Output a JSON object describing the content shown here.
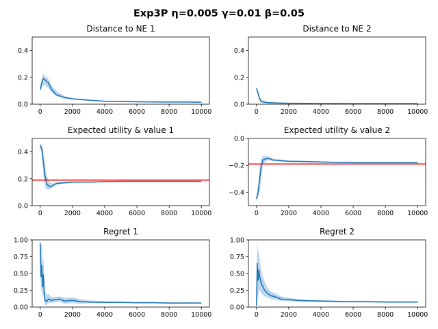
{
  "figure": {
    "suptitle": "Exp3P η=0.005 γ=0.01 β=0.05",
    "colors": {
      "line": "#1f77b4",
      "band": "#a8c8e8",
      "ref_line": "#ff0000",
      "axis": "#000000"
    }
  },
  "chart_data": [
    {
      "type": "line",
      "title": "Distance to NE 1",
      "xlim": [
        -500,
        10500
      ],
      "ylim": [
        0,
        0.5
      ],
      "xticks": [
        0,
        2000,
        4000,
        6000,
        8000,
        10000
      ],
      "xtick_labels": [
        "0",
        "2000",
        "4000",
        "6000",
        "8000",
        "10000"
      ],
      "yticks": [
        0.0,
        0.2,
        0.4
      ],
      "ytick_labels": [
        "0.0",
        "0.2",
        "0.4"
      ],
      "ref_line": null,
      "series": [
        {
          "name": "mean",
          "x": [
            0,
            100,
            200,
            300,
            500,
            700,
            1000,
            1500,
            2000,
            3000,
            4000,
            5000,
            6000,
            7000,
            8000,
            9000,
            10000
          ],
          "y": [
            0.11,
            0.16,
            0.19,
            0.18,
            0.16,
            0.11,
            0.07,
            0.05,
            0.04,
            0.03,
            0.022,
            0.02,
            0.018,
            0.017,
            0.016,
            0.016,
            0.015
          ],
          "lower": [
            0.1,
            0.12,
            0.14,
            0.14,
            0.12,
            0.09,
            0.06,
            0.04,
            0.035,
            0.025,
            0.02,
            0.018,
            0.016,
            0.015,
            0.014,
            0.014,
            0.013
          ],
          "upper": [
            0.12,
            0.2,
            0.23,
            0.21,
            0.19,
            0.14,
            0.1,
            0.06,
            0.045,
            0.035,
            0.025,
            0.022,
            0.02,
            0.019,
            0.018,
            0.018,
            0.017
          ]
        }
      ]
    },
    {
      "type": "line",
      "title": "Distance to NE 2",
      "xlim": [
        -500,
        10500
      ],
      "ylim": [
        0,
        0.5
      ],
      "xticks": [
        0,
        2000,
        4000,
        6000,
        8000,
        10000
      ],
      "xtick_labels": [
        "0",
        "2000",
        "4000",
        "6000",
        "8000",
        "10000"
      ],
      "yticks": [
        0.0,
        0.2,
        0.4
      ],
      "ytick_labels": [
        "0.0",
        "0.2",
        "0.4"
      ],
      "ref_line": null,
      "series": [
        {
          "name": "mean",
          "x": [
            0,
            100,
            200,
            300,
            500,
            700,
            1000,
            1500,
            2000,
            3000,
            4000,
            5000,
            6000,
            7000,
            8000,
            9000,
            10000
          ],
          "y": [
            0.12,
            0.08,
            0.04,
            0.02,
            0.015,
            0.012,
            0.01,
            0.008,
            0.007,
            0.006,
            0.005,
            0.005,
            0.004,
            0.004,
            0.004,
            0.004,
            0.004
          ],
          "lower": [
            0.11,
            0.06,
            0.02,
            0.01,
            0.008,
            0.007,
            0.006,
            0.005,
            0.004,
            0.004,
            0.003,
            0.003,
            0.003,
            0.003,
            0.003,
            0.003,
            0.003
          ],
          "upper": [
            0.13,
            0.1,
            0.06,
            0.03,
            0.022,
            0.018,
            0.014,
            0.011,
            0.01,
            0.008,
            0.007,
            0.007,
            0.006,
            0.006,
            0.005,
            0.005,
            0.005
          ]
        }
      ]
    },
    {
      "type": "line",
      "title": "Expected utility & value 1",
      "xlim": [
        -500,
        10500
      ],
      "ylim": [
        0,
        0.5
      ],
      "xticks": [
        0,
        2000,
        4000,
        6000,
        8000,
        10000
      ],
      "xtick_labels": [
        "0",
        "2000",
        "4000",
        "6000",
        "8000",
        "10000"
      ],
      "yticks": [
        0.0,
        0.2,
        0.4
      ],
      "ytick_labels": [
        "0.0",
        "0.2",
        "0.4"
      ],
      "ref_line": 0.19,
      "series": [
        {
          "name": "mean",
          "x": [
            0,
            100,
            200,
            300,
            400,
            600,
            800,
            1000,
            1500,
            2000,
            3000,
            4000,
            5000,
            6000,
            7000,
            8000,
            9000,
            10000
          ],
          "y": [
            0.45,
            0.42,
            0.32,
            0.22,
            0.16,
            0.14,
            0.15,
            0.165,
            0.17,
            0.175,
            0.175,
            0.178,
            0.18,
            0.18,
            0.18,
            0.18,
            0.18,
            0.18
          ],
          "lower": [
            0.43,
            0.38,
            0.22,
            0.14,
            0.12,
            0.12,
            0.14,
            0.155,
            0.165,
            0.17,
            0.17,
            0.174,
            0.176,
            0.176,
            0.176,
            0.176,
            0.176,
            0.176
          ],
          "upper": [
            0.46,
            0.45,
            0.4,
            0.3,
            0.22,
            0.17,
            0.165,
            0.175,
            0.178,
            0.18,
            0.18,
            0.182,
            0.184,
            0.184,
            0.184,
            0.184,
            0.184,
            0.184
          ]
        }
      ]
    },
    {
      "type": "line",
      "title": "Expected utility & value 2",
      "xlim": [
        -500,
        10500
      ],
      "ylim": [
        -0.5,
        0.0
      ],
      "xticks": [
        0,
        2000,
        4000,
        6000,
        8000,
        10000
      ],
      "xtick_labels": [
        "0",
        "2000",
        "4000",
        "6000",
        "8000",
        "10000"
      ],
      "yticks": [
        0.0,
        -0.2,
        -0.4
      ],
      "ytick_labels": [
        "0.0",
        "−0.2",
        "−0.4"
      ],
      "ref_line": -0.19,
      "series": [
        {
          "name": "mean",
          "x": [
            0,
            100,
            200,
            300,
            400,
            600,
            800,
            1000,
            1500,
            2000,
            3000,
            4000,
            5000,
            6000,
            7000,
            8000,
            9000,
            10000
          ],
          "y": [
            -0.45,
            -0.4,
            -0.3,
            -0.2,
            -0.16,
            -0.15,
            -0.15,
            -0.16,
            -0.165,
            -0.17,
            -0.172,
            -0.175,
            -0.178,
            -0.18,
            -0.18,
            -0.18,
            -0.18,
            -0.18
          ],
          "lower": [
            -0.46,
            -0.44,
            -0.4,
            -0.28,
            -0.2,
            -0.165,
            -0.16,
            -0.17,
            -0.172,
            -0.175,
            -0.176,
            -0.179,
            -0.182,
            -0.184,
            -0.184,
            -0.184,
            -0.184,
            -0.184
          ],
          "upper": [
            -0.44,
            -0.36,
            -0.22,
            -0.15,
            -0.13,
            -0.13,
            -0.135,
            -0.15,
            -0.158,
            -0.165,
            -0.168,
            -0.171,
            -0.174,
            -0.176,
            -0.176,
            -0.176,
            -0.176,
            -0.176
          ]
        }
      ]
    },
    {
      "type": "line",
      "title": "Regret 1",
      "xlim": [
        -500,
        10500
      ],
      "ylim": [
        0,
        1.0
      ],
      "xticks": [
        0,
        2000,
        4000,
        6000,
        8000,
        10000
      ],
      "xtick_labels": [
        "0",
        "2000",
        "4000",
        "6000",
        "8000",
        "10000"
      ],
      "yticks": [
        0.0,
        0.25,
        0.5,
        0.75,
        1.0
      ],
      "ytick_labels": [
        "0.00",
        "0.25",
        "0.50",
        "0.75",
        "1.00"
      ],
      "ref_line": null,
      "series": [
        {
          "name": "mean",
          "x": [
            0,
            50,
            100,
            150,
            200,
            250,
            300,
            400,
            500,
            700,
            900,
            1200,
            1500,
            2000,
            2500,
            3000,
            4000,
            5000,
            6000,
            7000,
            8000,
            9000,
            10000
          ],
          "y": [
            0.95,
            0.45,
            0.62,
            0.3,
            0.48,
            0.2,
            0.1,
            0.08,
            0.12,
            0.1,
            0.11,
            0.12,
            0.09,
            0.1,
            0.08,
            0.075,
            0.07,
            0.07,
            0.065,
            0.065,
            0.06,
            0.06,
            0.06
          ],
          "lower": [
            0.6,
            0.2,
            0.3,
            0.12,
            0.2,
            0.06,
            0.03,
            0.03,
            0.06,
            0.06,
            0.07,
            0.08,
            0.05,
            0.06,
            0.05,
            0.06,
            0.06,
            0.06,
            0.055,
            0.055,
            0.05,
            0.05,
            0.05
          ],
          "upper": [
            1.0,
            0.9,
            0.95,
            0.6,
            0.75,
            0.45,
            0.25,
            0.18,
            0.2,
            0.15,
            0.15,
            0.16,
            0.14,
            0.14,
            0.12,
            0.1,
            0.085,
            0.08,
            0.075,
            0.075,
            0.07,
            0.07,
            0.07
          ]
        }
      ]
    },
    {
      "type": "line",
      "title": "Regret 2",
      "xlim": [
        -500,
        10500
      ],
      "ylim": [
        0,
        1.0
      ],
      "xticks": [
        0,
        2000,
        4000,
        6000,
        8000,
        10000
      ],
      "xtick_labels": [
        "0",
        "2000",
        "4000",
        "6000",
        "8000",
        "10000"
      ],
      "yticks": [
        0.0,
        0.25,
        0.5,
        0.75,
        1.0
      ],
      "ytick_labels": [
        "0.00",
        "0.25",
        "0.50",
        "0.75",
        "1.00"
      ],
      "ref_line": null,
      "series": [
        {
          "name": "mean",
          "x": [
            0,
            50,
            100,
            150,
            200,
            300,
            400,
            500,
            700,
            900,
            1200,
            1500,
            2000,
            2500,
            3000,
            4000,
            5000,
            6000,
            7000,
            8000,
            9000,
            10000
          ],
          "y": [
            0.02,
            0.65,
            0.4,
            0.55,
            0.45,
            0.35,
            0.3,
            0.25,
            0.2,
            0.17,
            0.15,
            0.12,
            0.11,
            0.1,
            0.095,
            0.09,
            0.085,
            0.08,
            0.08,
            0.075,
            0.075,
            0.075
          ],
          "lower": [
            0.0,
            0.2,
            0.1,
            0.25,
            0.25,
            0.2,
            0.18,
            0.16,
            0.14,
            0.12,
            0.11,
            0.09,
            0.09,
            0.08,
            0.08,
            0.075,
            0.07,
            0.07,
            0.07,
            0.065,
            0.065,
            0.065
          ],
          "upper": [
            0.3,
            1.0,
            0.8,
            0.85,
            0.7,
            0.55,
            0.45,
            0.38,
            0.28,
            0.23,
            0.2,
            0.16,
            0.14,
            0.12,
            0.11,
            0.1,
            0.095,
            0.09,
            0.09,
            0.085,
            0.085,
            0.085
          ]
        }
      ]
    }
  ]
}
